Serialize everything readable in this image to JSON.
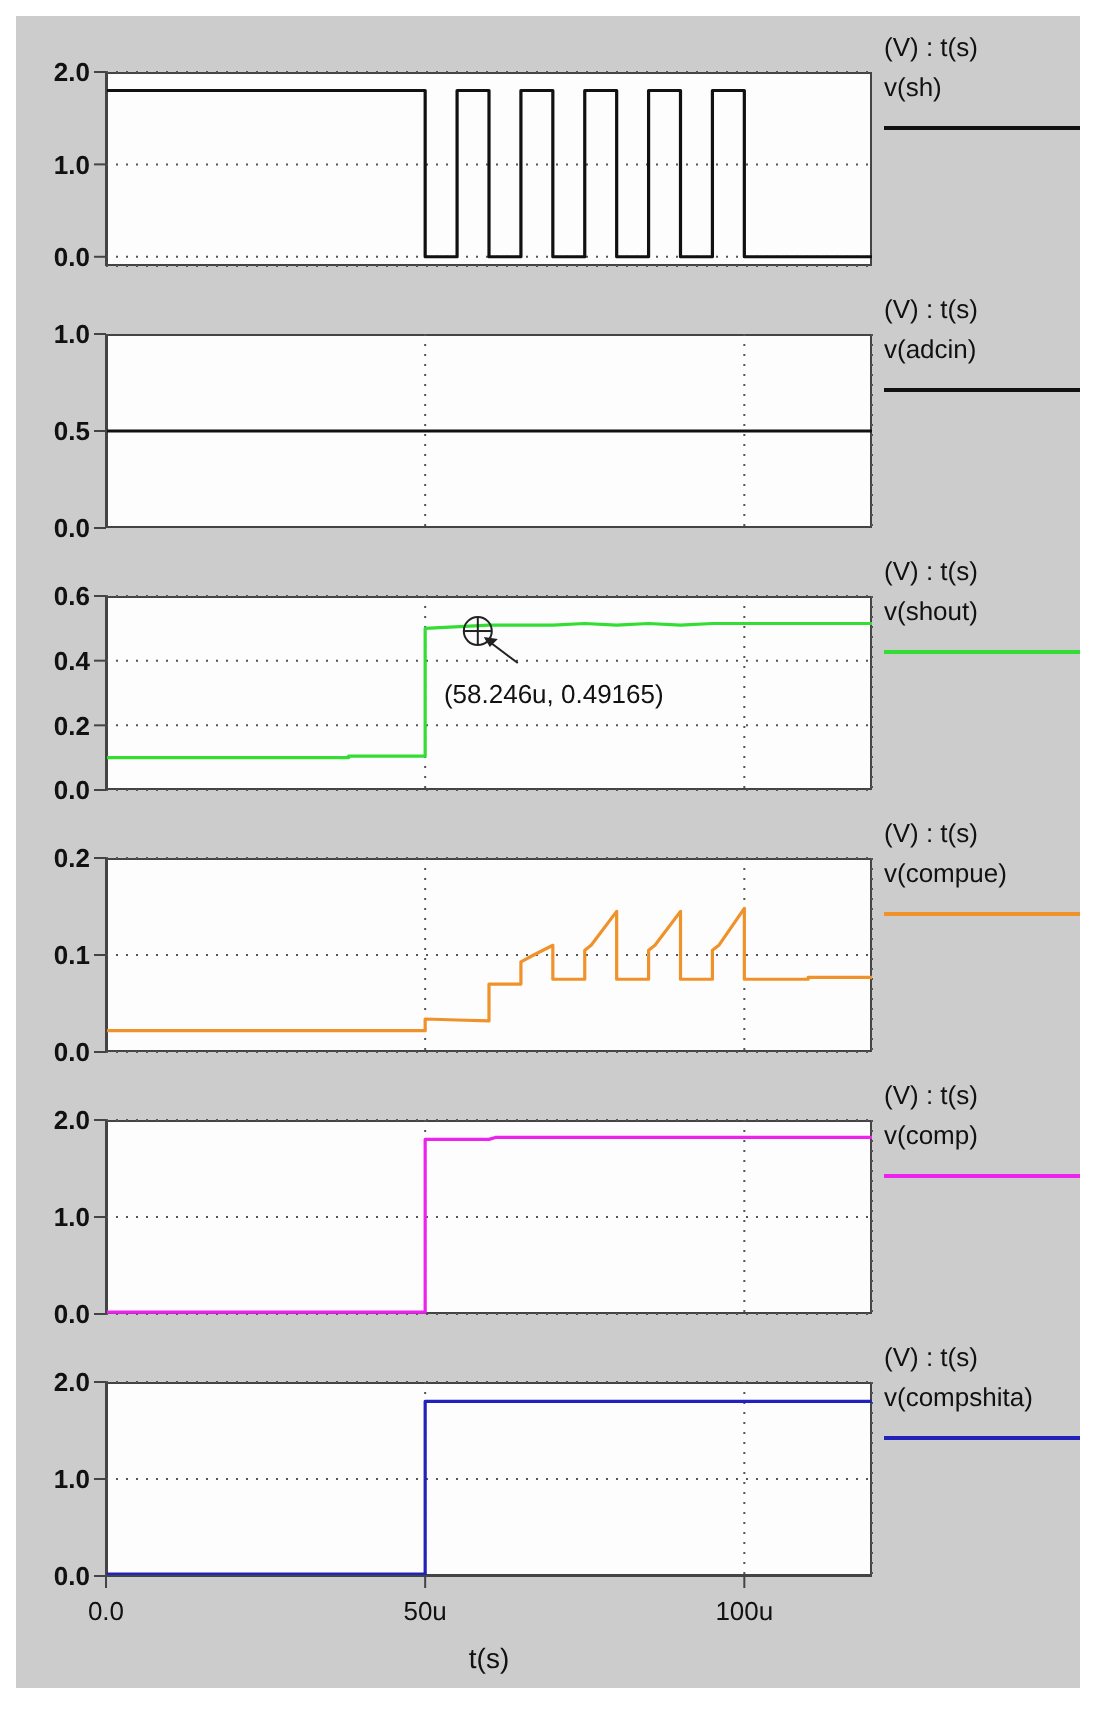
{
  "chart_data": [
    {
      "type": "line",
      "ylabel": "(V) : t(s)",
      "xlim": [
        0,
        120
      ],
      "xticks": [
        {
          "value": 0,
          "label": null
        },
        {
          "value": 50,
          "label": null
        },
        {
          "value": 100,
          "label": null
        }
      ],
      "ylim": [
        -0.1,
        2
      ],
      "yticks": [
        {
          "value": 0,
          "label": "0.0"
        },
        {
          "value": 1,
          "label": "1.0"
        },
        {
          "value": 2,
          "label": "2.0"
        }
      ],
      "grid": "y",
      "legend": "right",
      "tick_labels": "y",
      "series": [
        {
          "name": "v(sh)",
          "color": "#111111",
          "x": [
            0,
            50,
            50,
            55,
            55,
            60,
            60,
            65,
            65,
            70,
            70,
            75,
            75,
            80,
            80,
            85,
            85,
            90,
            90,
            95,
            95,
            100,
            100,
            120
          ],
          "values": [
            1.8,
            1.8,
            0,
            0,
            1.8,
            1.8,
            0,
            0,
            1.8,
            1.8,
            0,
            0,
            1.8,
            1.8,
            0,
            0,
            1.8,
            1.8,
            0,
            0,
            1.8,
            1.8,
            0,
            0
          ]
        }
      ]
    },
    {
      "type": "line",
      "ylabel": "(V) : t(s)",
      "xlim": [
        0,
        120
      ],
      "xticks": [
        {
          "value": 0,
          "label": null
        },
        {
          "value": 50,
          "label": null
        },
        {
          "value": 100,
          "label": null
        }
      ],
      "ylim": [
        0,
        1
      ],
      "yticks": [
        {
          "value": 0,
          "label": "0.0"
        },
        0.5,
        {
          "value": 1,
          "label": "1.0"
        }
      ],
      "grid": "x",
      "legend": "right",
      "tick_labels": "y",
      "series": [
        {
          "name": "v(adcin)",
          "color": "#111111",
          "x": [
            0,
            120
          ],
          "values": [
            0.5,
            0.5
          ]
        }
      ]
    },
    {
      "type": "line",
      "ylabel": "(V) : t(s)",
      "xlim": [
        0,
        120
      ],
      "xticks": [
        {
          "value": 0,
          "label": null
        },
        {
          "value": 50,
          "label": null
        },
        {
          "value": 100,
          "label": null
        }
      ],
      "ylim": [
        0,
        0.6
      ],
      "yticks": [
        {
          "value": 0,
          "label": "0.0"
        },
        0.2,
        0.4,
        0.6
      ],
      "grid": true,
      "legend": "right",
      "tick_labels": "y",
      "annotations": [
        {
          "text": "(58.246u, 0.49165)",
          "x": 58.246,
          "y": 0.49165
        }
      ],
      "series": [
        {
          "name": "v(shout)",
          "color": "#33dd33",
          "x": [
            0,
            38,
            38,
            50,
            50,
            60,
            70,
            75,
            80,
            85,
            90,
            95,
            100,
            120
          ],
          "values": [
            0.1,
            0.1,
            0.105,
            0.105,
            0.5,
            0.51,
            0.51,
            0.515,
            0.51,
            0.515,
            0.51,
            0.515,
            0.515,
            0.515
          ]
        }
      ]
    },
    {
      "type": "line",
      "ylabel": "(V) : t(s)",
      "xlim": [
        0,
        120
      ],
      "xticks": [
        {
          "value": 0,
          "label": null
        },
        {
          "value": 50,
          "label": null
        },
        {
          "value": 100,
          "label": null
        }
      ],
      "ylim": [
        0,
        0.2
      ],
      "yticks": [
        {
          "value": 0,
          "label": "0.0"
        },
        0.1,
        0.2
      ],
      "grid": true,
      "legend": "right",
      "tick_labels": "y",
      "series": [
        {
          "name": "v(compue)",
          "color": "#f0922a",
          "x": [
            0,
            50,
            50,
            55,
            60,
            60,
            65,
            65,
            67,
            70,
            70,
            75,
            75,
            76,
            80,
            80,
            85,
            85,
            86,
            90,
            90,
            95,
            95,
            96,
            100,
            100,
            110,
            110,
            120
          ],
          "values": [
            0.022,
            0.022,
            0.034,
            0.033,
            0.032,
            0.07,
            0.07,
            0.093,
            0.1,
            0.11,
            0.075,
            0.075,
            0.105,
            0.11,
            0.145,
            0.075,
            0.075,
            0.105,
            0.11,
            0.145,
            0.075,
            0.075,
            0.105,
            0.11,
            0.148,
            0.075,
            0.075,
            0.077,
            0.077
          ]
        }
      ]
    },
    {
      "type": "line",
      "ylabel": "(V) : t(s)",
      "xlim": [
        0,
        120
      ],
      "xticks": [
        {
          "value": 0,
          "label": null
        },
        {
          "value": 50,
          "label": null
        },
        {
          "value": 100,
          "label": null
        }
      ],
      "ylim": [
        0,
        2
      ],
      "yticks": [
        {
          "value": 0,
          "label": "0.0"
        },
        {
          "value": 1,
          "label": "1.0"
        },
        {
          "value": 2,
          "label": "2.0"
        }
      ],
      "grid": true,
      "legend": "right",
      "tick_labels": "y",
      "series": [
        {
          "name": "v(comp)",
          "color": "#ee22ee",
          "x": [
            0,
            50,
            50,
            60,
            61,
            120
          ],
          "values": [
            0.02,
            0.02,
            1.8,
            1.8,
            1.82,
            1.82
          ]
        }
      ]
    },
    {
      "type": "line",
      "ylabel": "(V) : t(s)",
      "xlabel": "t(s)",
      "xlim": [
        0,
        120
      ],
      "xticks": [
        {
          "value": 0,
          "label": "0.0"
        },
        {
          "value": 50,
          "label": "50u"
        },
        {
          "value": 100,
          "label": "100u"
        }
      ],
      "ylim": [
        0,
        2
      ],
      "yticks": [
        {
          "value": 0,
          "label": "0.0"
        },
        {
          "value": 1,
          "label": "1.0"
        },
        {
          "value": 2,
          "label": "2.0"
        }
      ],
      "grid": true,
      "legend": "right",
      "series": [
        {
          "name": "v(compshita)",
          "color": "#2222bb",
          "x": [
            0,
            50,
            50,
            120
          ],
          "values": [
            0.02,
            0.02,
            1.8,
            1.8
          ]
        }
      ]
    }
  ]
}
